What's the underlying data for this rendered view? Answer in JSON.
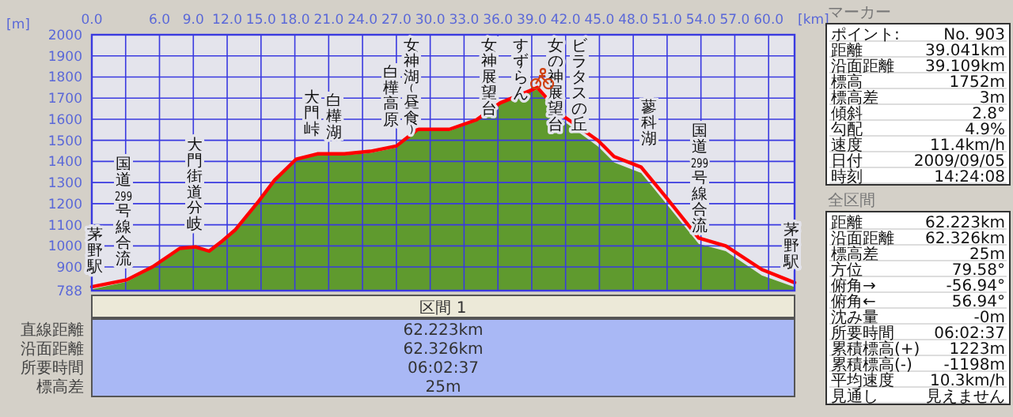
{
  "chart_data": {
    "type": "area",
    "xlabel": "[km]",
    "ylabel": "[m]",
    "x": [
      0,
      3.1,
      5.4,
      7.8,
      9.2,
      10.4,
      11.6,
      12.7,
      14.8,
      16.2,
      18.1,
      20,
      22.4,
      24.7,
      27,
      28.9,
      31.7,
      34.1,
      36.2,
      38.8,
      39.5,
      41.6,
      44.9,
      46.3,
      48.7,
      51,
      53.8,
      56.2,
      59.4,
      62.3
    ],
    "series": [
      {
        "color": "#5f9a2e",
        "values": [
          795,
          830,
          895,
          985,
          992,
          970,
          1020,
          1070,
          1205,
          1305,
          1405,
          1430,
          1430,
          1440,
          1465,
          1545,
          1545,
          1590,
          1670,
          1728,
          1740,
          1600,
          1470,
          1395,
          1345,
          1195,
          1010,
          975,
          860,
          805
        ]
      },
      {
        "type": "line",
        "color": "#ff0000",
        "values": [
          806,
          839,
          901,
          988,
          995,
          975,
          1025,
          1075,
          1212,
          1311,
          1410,
          1436,
          1436,
          1448,
          1473,
          1552,
          1552,
          1597,
          1677,
          1734,
          1750,
          1622,
          1498,
          1423,
          1373,
          1224,
          1037,
          1000,
          888,
          826
        ]
      }
    ],
    "xlim": [
      0,
      62.3
    ],
    "xticks": [
      {
        "value": 0,
        "label": "0.0"
      },
      {
        "value": 3,
        "label": null
      },
      {
        "value": 6,
        "label": "6.0"
      },
      {
        "value": 9,
        "label": "9.0"
      },
      {
        "value": 12,
        "label": "12.0"
      },
      {
        "value": 15,
        "label": "15.0"
      },
      {
        "value": 18,
        "label": "18.0"
      },
      {
        "value": 21,
        "label": "21.0"
      },
      {
        "value": 24,
        "label": "24.0"
      },
      {
        "value": 27,
        "label": "27.0"
      },
      {
        "value": 30,
        "label": "30.0"
      },
      {
        "value": 33,
        "label": "33.0"
      },
      {
        "value": 36,
        "label": "36.0"
      },
      {
        "value": 39,
        "label": "39.0"
      },
      {
        "value": 42,
        "label": "42.0"
      },
      {
        "value": 45,
        "label": "45.0"
      },
      {
        "value": 48,
        "label": "48.0"
      },
      {
        "value": 51,
        "label": "51.0"
      },
      {
        "value": 54,
        "label": "54.0"
      },
      {
        "value": 57,
        "label": "57.0"
      },
      {
        "value": 60,
        "label": "60.0"
      }
    ],
    "ylim": [
      788,
      2000
    ],
    "yticks": [
      788,
      900,
      1000,
      1100,
      1200,
      1300,
      1400,
      1500,
      1600,
      1700,
      1800,
      1900,
      2000
    ],
    "grid": true,
    "annotations": [
      "茅野駅",
      "国道299号線合流",
      "大門街道分岐",
      "大門峠",
      "白樺湖",
      "白樺高原",
      "女神湖(昼食)",
      "女神展望台",
      "すずらん",
      "女の神展望台",
      "ビラタスの丘",
      "蓼科湖",
      "国道299号線合流",
      "茅野駅",
      "区間 1",
      "直線距離",
      "62.223km",
      "沿面距離",
      "62.326km",
      "所要時間",
      "06:02:37",
      "標高差",
      "25m",
      "マーカー",
      "ポイント:",
      "No. 903",
      "距離",
      "39.041km",
      "沿面距離",
      "39.109km",
      "標高",
      "1752m",
      "標高差",
      "3m",
      "傾斜",
      "2.8°",
      "勾配",
      "4.9%",
      "速度",
      "11.4km/h",
      "日付",
      "2009/09/05",
      "時刻",
      "14:24:08",
      "全区間",
      "距離",
      "62.223km",
      "沿面距離",
      "62.326km",
      "標高差",
      "25m",
      "方位",
      "79.58°",
      "俯角→",
      "-56.94°",
      "俯角←",
      "56.94°",
      "沈み量",
      "-0m",
      "所要時間",
      "06:02:37",
      "累積標高(+)",
      "1223m",
      "累積標高(-)",
      "-1198m",
      "平均速度",
      "10.3km/h",
      "見通し",
      "見えません"
    ]
  }
}
